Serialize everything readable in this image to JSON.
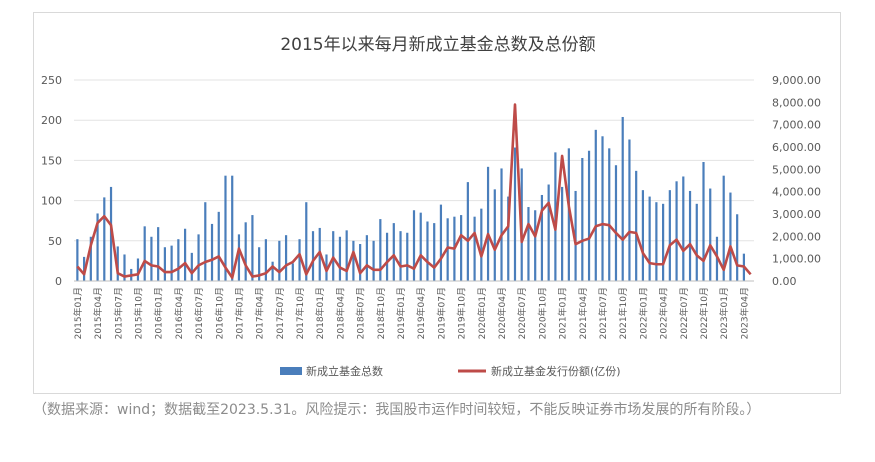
{
  "chart_data": {
    "type": "bar",
    "title": "2015年以来每月新成立基金总数及总份额",
    "xlabel": "",
    "ylabel": "",
    "ylim": [
      0,
      250
    ],
    "y2lim": [
      0,
      9000
    ],
    "yticks": [
      "0",
      "50",
      "100",
      "150",
      "200",
      "250"
    ],
    "y2ticks": [
      "0.00",
      "1,000.00",
      "2,000.00",
      "3,000.00",
      "4,000.00",
      "5,000.00",
      "6,000.00",
      "7,000.00",
      "8,000.00",
      "9,000.00"
    ],
    "x_tick_labels": [
      "2015年01月",
      "2015年04月",
      "2015年07月",
      "2015年10月",
      "2016年01月",
      "2016年04月",
      "2016年07月",
      "2016年10月",
      "2017年01月",
      "2017年04月",
      "2017年07月",
      "2017年10月",
      "2018年01月",
      "2018年04月",
      "2018年07月",
      "2018年10月",
      "2019年01月",
      "2019年04月",
      "2019年07月",
      "2019年10月",
      "2020年01月",
      "2020年04月",
      "2020年07月",
      "2020年10月",
      "2021年01月",
      "2021年04月",
      "2021年07月",
      "2021年10月",
      "2022年01月",
      "2022年04月",
      "2022年07月",
      "2022年10月",
      "2023年01月",
      "2023年04月"
    ],
    "categories": [
      "2015-01",
      "2015-02",
      "2015-03",
      "2015-04",
      "2015-05",
      "2015-06",
      "2015-07",
      "2015-08",
      "2015-09",
      "2015-10",
      "2015-11",
      "2015-12",
      "2016-01",
      "2016-02",
      "2016-03",
      "2016-04",
      "2016-05",
      "2016-06",
      "2016-07",
      "2016-08",
      "2016-09",
      "2016-10",
      "2016-11",
      "2016-12",
      "2017-01",
      "2017-02",
      "2017-03",
      "2017-04",
      "2017-05",
      "2017-06",
      "2017-07",
      "2017-08",
      "2017-09",
      "2017-10",
      "2017-11",
      "2017-12",
      "2018-01",
      "2018-02",
      "2018-03",
      "2018-04",
      "2018-05",
      "2018-06",
      "2018-07",
      "2018-08",
      "2018-09",
      "2018-10",
      "2018-11",
      "2018-12",
      "2019-01",
      "2019-02",
      "2019-03",
      "2019-04",
      "2019-05",
      "2019-06",
      "2019-07",
      "2019-08",
      "2019-09",
      "2019-10",
      "2019-11",
      "2019-12",
      "2020-01",
      "2020-02",
      "2020-03",
      "2020-04",
      "2020-05",
      "2020-06",
      "2020-07",
      "2020-08",
      "2020-09",
      "2020-10",
      "2020-11",
      "2020-12",
      "2021-01",
      "2021-02",
      "2021-03",
      "2021-04",
      "2021-05",
      "2021-06",
      "2021-07",
      "2021-08",
      "2021-09",
      "2021-10",
      "2021-11",
      "2021-12",
      "2022-01",
      "2022-02",
      "2022-03",
      "2022-04",
      "2022-05",
      "2022-06",
      "2022-07",
      "2022-08",
      "2022-09",
      "2022-10",
      "2022-11",
      "2022-12",
      "2023-01",
      "2023-02",
      "2023-03",
      "2023-04",
      "2023-05"
    ],
    "series": [
      {
        "name": "新成立基金总数",
        "axis": "left",
        "color": "#4a7ebb",
        "values": [
          52,
          30,
          55,
          84,
          104,
          117,
          43,
          33,
          15,
          28,
          68,
          55,
          67,
          42,
          44,
          52,
          65,
          35,
          58,
          98,
          71,
          86,
          131,
          131,
          58,
          73,
          82,
          42,
          52,
          24,
          50,
          57,
          22,
          52,
          98,
          62,
          66,
          33,
          62,
          55,
          63,
          50,
          46,
          57,
          50,
          77,
          60,
          72,
          62,
          60,
          88,
          85,
          74,
          72,
          95,
          78,
          80,
          82,
          123,
          80,
          90,
          142,
          114,
          140,
          105,
          166,
          140,
          92,
          88,
          107,
          120,
          160,
          117,
          165,
          112,
          153,
          162,
          188,
          180,
          165,
          144,
          204,
          176,
          137,
          113,
          105,
          98,
          96,
          113,
          124,
          130,
          112,
          96,
          148,
          115,
          55,
          131,
          110,
          83,
          34,
          0
        ]
      },
      {
        "name": "新成立基金发行份额(亿份)",
        "axis": "right",
        "color": "#be4b48",
        "values": [
          650,
          300,
          1600,
          2600,
          2900,
          2500,
          350,
          200,
          250,
          300,
          900,
          700,
          650,
          400,
          400,
          550,
          800,
          350,
          700,
          850,
          950,
          1100,
          600,
          150,
          1450,
          700,
          200,
          250,
          350,
          650,
          400,
          700,
          850,
          1200,
          300,
          900,
          1300,
          450,
          1050,
          600,
          450,
          1300,
          350,
          700,
          500,
          500,
          850,
          1150,
          650,
          700,
          550,
          1150,
          850,
          600,
          1000,
          1500,
          1450,
          2050,
          1800,
          2150,
          1100,
          2100,
          1400,
          2050,
          2450,
          7900,
          1750,
          2550,
          2000,
          3150,
          3500,
          2300,
          5600,
          3350,
          1650,
          1800,
          1900,
          2450,
          2550,
          2500,
          2150,
          1850,
          2200,
          2150,
          1250,
          800,
          750,
          750,
          1600,
          1850,
          1350,
          1650,
          1150,
          900,
          1600,
          1100,
          500,
          1550,
          700,
          650,
          300
        ]
      }
    ]
  },
  "source_note": "（数据来源：wind；数据截至2023.5.31。风险提示：我国股市运作时间较短，不能反映证券市场发展的所有阶段。）"
}
